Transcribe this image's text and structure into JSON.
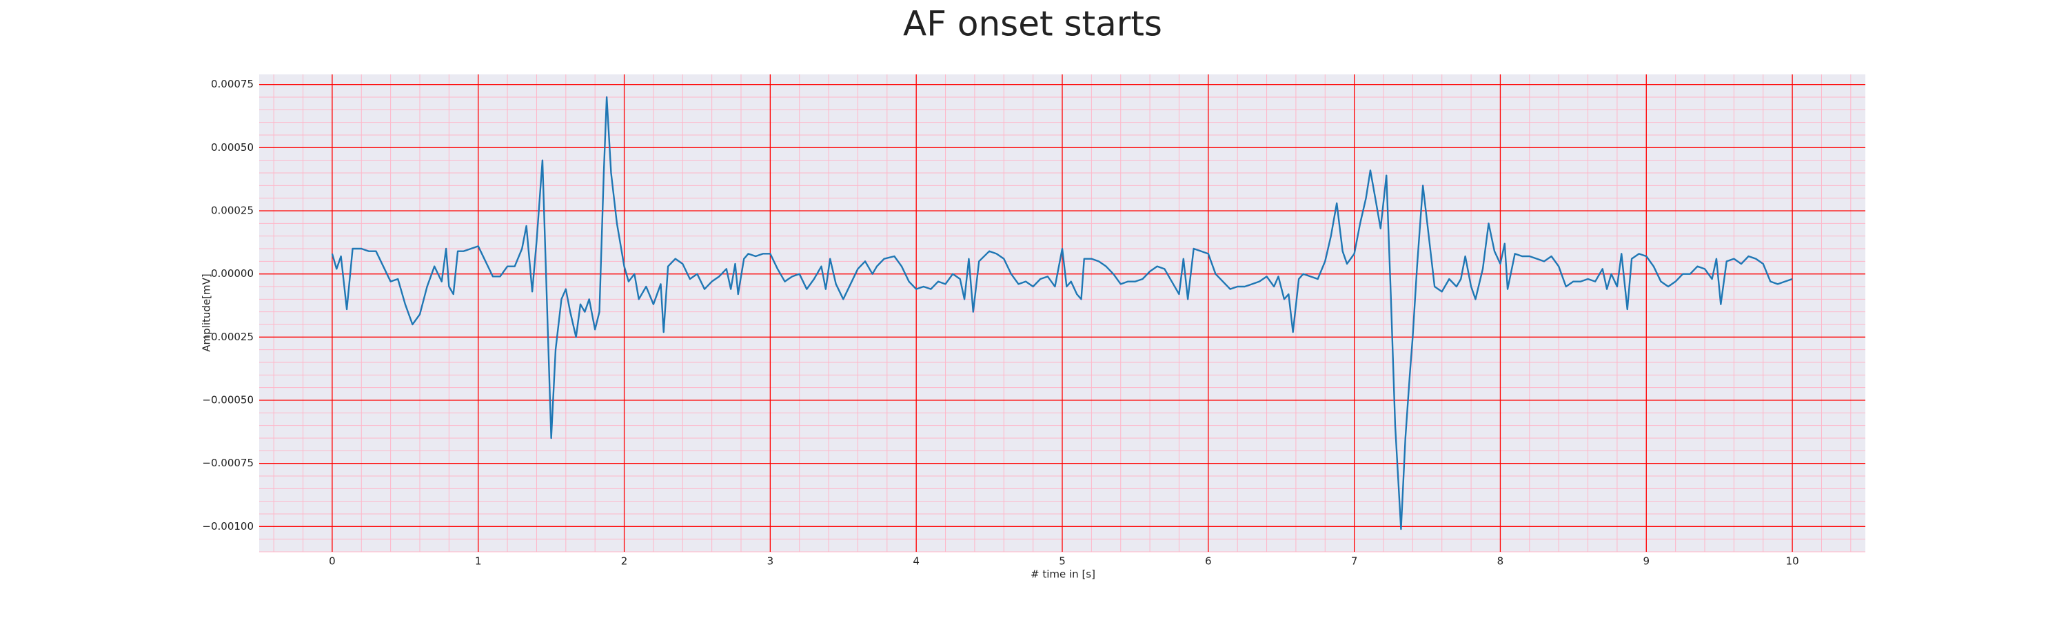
{
  "chart_data": {
    "type": "line",
    "title": "AF onset starts",
    "xlabel": "# time in [s]",
    "ylabel": "Amplitude[mV]",
    "x": [
      0,
      0.03,
      0.06,
      0.1,
      0.14,
      0.2,
      0.25,
      0.3,
      0.35,
      0.4,
      0.45,
      0.5,
      0.55,
      0.6,
      0.65,
      0.7,
      0.75,
      0.78,
      0.8,
      0.83,
      0.86,
      0.9,
      0.95,
      1.0,
      1.05,
      1.1,
      1.15,
      1.2,
      1.25,
      1.3,
      1.33,
      1.37,
      1.4,
      1.44,
      1.47,
      1.5,
      1.53,
      1.57,
      1.6,
      1.63,
      1.67,
      1.7,
      1.73,
      1.76,
      1.8,
      1.83,
      1.86,
      1.88,
      1.91,
      1.95,
      2.0,
      2.03,
      2.07,
      2.1,
      2.15,
      2.2,
      2.25,
      2.27,
      2.3,
      2.35,
      2.4,
      2.45,
      2.5,
      2.55,
      2.6,
      2.65,
      2.7,
      2.73,
      2.76,
      2.78,
      2.82,
      2.85,
      2.9,
      2.95,
      3.0,
      3.05,
      3.1,
      3.15,
      3.2,
      3.25,
      3.3,
      3.35,
      3.38,
      3.41,
      3.45,
      3.5,
      3.55,
      3.6,
      3.65,
      3.7,
      3.73,
      3.78,
      3.85,
      3.9,
      3.95,
      4.0,
      4.05,
      4.1,
      4.15,
      4.2,
      4.25,
      4.3,
      4.33,
      4.36,
      4.39,
      4.43,
      4.5,
      4.55,
      4.6,
      4.65,
      4.7,
      4.75,
      4.8,
      4.85,
      4.9,
      4.95,
      4.97,
      5.0,
      5.03,
      5.06,
      5.1,
      5.13,
      5.15,
      5.2,
      5.25,
      5.3,
      5.35,
      5.4,
      5.45,
      5.5,
      5.55,
      5.6,
      5.65,
      5.7,
      5.75,
      5.8,
      5.83,
      5.86,
      5.9,
      5.95,
      6.0,
      6.05,
      6.1,
      6.15,
      6.2,
      6.25,
      6.3,
      6.35,
      6.4,
      6.45,
      6.48,
      6.52,
      6.55,
      6.58,
      6.62,
      6.65,
      6.7,
      6.75,
      6.8,
      6.84,
      6.88,
      6.92,
      6.95,
      7.0,
      7.04,
      7.08,
      7.11,
      7.15,
      7.18,
      7.22,
      7.25,
      7.28,
      7.32,
      7.35,
      7.38,
      7.4,
      7.43,
      7.47,
      7.5,
      7.55,
      7.6,
      7.65,
      7.7,
      7.73,
      7.76,
      7.8,
      7.83,
      7.88,
      7.92,
      7.96,
      8.0,
      8.03,
      8.05,
      8.1,
      8.15,
      8.2,
      8.25,
      8.3,
      8.35,
      8.4,
      8.45,
      8.5,
      8.55,
      8.6,
      8.65,
      8.7,
      8.73,
      8.76,
      8.8,
      8.83,
      8.87,
      8.9,
      8.95,
      9.0,
      9.05,
      9.1,
      9.15,
      9.2,
      9.25,
      9.3,
      9.35,
      9.4,
      9.45,
      9.48,
      9.51,
      9.55,
      9.6,
      9.65,
      9.7,
      9.75,
      9.8,
      9.85,
      9.9,
      9.95,
      10.0
    ],
    "series": [
      {
        "color": "#1f77b4",
        "values": [
          8e-05,
          2e-05,
          7e-05,
          -0.00014,
          0.0001,
          0.0001,
          9e-05,
          9e-05,
          3e-05,
          -3e-05,
          -2e-05,
          -0.00012,
          -0.0002,
          -0.00016,
          -5e-05,
          3e-05,
          -3e-05,
          0.0001,
          -5e-05,
          -8e-05,
          9e-05,
          9e-05,
          0.0001,
          0.00011,
          5e-05,
          -1e-05,
          -1e-05,
          3e-05,
          3e-05,
          0.0001,
          0.00019,
          -7e-05,
          0.00013,
          0.00045,
          -0.0001,
          -0.00065,
          -0.0003,
          -0.0001,
          -6e-05,
          -0.00015,
          -0.00025,
          -0.00012,
          -0.00015,
          -0.0001,
          -0.00022,
          -0.00015,
          0.0004,
          0.0007,
          0.0004,
          0.0002,
          3e-05,
          -3e-05,
          0,
          -0.0001,
          -5e-05,
          -0.00012,
          -4e-05,
          -0.00023,
          3e-05,
          6e-05,
          4e-05,
          -2e-05,
          0,
          -6e-05,
          -3e-05,
          -1e-05,
          2e-05,
          -6e-05,
          4e-05,
          -8e-05,
          6e-05,
          8e-05,
          7e-05,
          8e-05,
          8e-05,
          2e-05,
          -3e-05,
          -1e-05,
          0,
          -6e-05,
          -2e-05,
          3e-05,
          -6e-05,
          6e-05,
          -4e-05,
          -0.0001,
          -4e-05,
          2e-05,
          5e-05,
          0,
          3e-05,
          6e-05,
          7e-05,
          3e-05,
          -3e-05,
          -6e-05,
          -5e-05,
          -6e-05,
          -3e-05,
          -4e-05,
          0,
          -2e-05,
          -0.0001,
          6e-05,
          -0.00015,
          5e-05,
          9e-05,
          8e-05,
          6e-05,
          0,
          -4e-05,
          -3e-05,
          -5e-05,
          -2e-05,
          -1e-05,
          -5e-05,
          1e-05,
          0.0001,
          -5e-05,
          -3e-05,
          -8e-05,
          -0.0001,
          6e-05,
          6e-05,
          5e-05,
          3e-05,
          0,
          -4e-05,
          -3e-05,
          -3e-05,
          -2e-05,
          1e-05,
          3e-05,
          2e-05,
          -3e-05,
          -8e-05,
          6e-05,
          -0.0001,
          0.0001,
          9e-05,
          8e-05,
          0,
          -3e-05,
          -6e-05,
          -5e-05,
          -5e-05,
          -4e-05,
          -3e-05,
          -1e-05,
          -5e-05,
          -1e-05,
          -0.0001,
          -8e-05,
          -0.00023,
          -2e-05,
          0,
          -1e-05,
          -2e-05,
          5e-05,
          0.00015,
          0.00028,
          9e-05,
          4e-05,
          8e-05,
          0.0002,
          0.0003,
          0.00041,
          0.00028,
          0.00018,
          0.00039,
          -8e-05,
          -0.0006,
          -0.00101,
          -0.00065,
          -0.0004,
          -0.00025,
          3e-05,
          0.00035,
          0.0002,
          -5e-05,
          -7e-05,
          -2e-05,
          -5e-05,
          -2e-05,
          7e-05,
          -5e-05,
          -0.0001,
          2e-05,
          0.0002,
          9e-05,
          4e-05,
          0.00012,
          -6e-05,
          8e-05,
          7e-05,
          7e-05,
          6e-05,
          5e-05,
          7e-05,
          3e-05,
          -5e-05,
          -3e-05,
          -3e-05,
          -2e-05,
          -3e-05,
          2e-05,
          -6e-05,
          0,
          -5e-05,
          8e-05,
          -0.00014,
          6e-05,
          8e-05,
          7e-05,
          3e-05,
          -3e-05,
          -5e-05,
          -3e-05,
          0,
          0,
          3e-05,
          2e-05,
          -2e-05,
          6e-05,
          -0.00012,
          5e-05,
          6e-05,
          4e-05,
          7e-05,
          6e-05,
          4e-05,
          -3e-05,
          -4e-05,
          -3e-05,
          -2e-05
        ]
      }
    ],
    "xlim": [
      -0.5,
      10.5
    ],
    "ylim": [
      -0.0011,
      0.00079
    ],
    "xticks": [
      0,
      1,
      2,
      3,
      4,
      5,
      6,
      7,
      8,
      9,
      10
    ],
    "yticks": [
      {
        "value": 0.00075,
        "label": "0.00075"
      },
      {
        "value": 0.0005,
        "label": "0.00050"
      },
      {
        "value": 0.00025,
        "label": "0.00025"
      },
      {
        "value": 0,
        "label": "0.00000"
      },
      {
        "value": -0.00025,
        "label": "−0.00025"
      },
      {
        "value": -0.0005,
        "label": "−0.00050"
      },
      {
        "value": -0.00075,
        "label": "−0.00075"
      },
      {
        "value": -0.001,
        "label": "−0.00100"
      }
    ],
    "grid": true,
    "grid_color": "#ff0000",
    "minor_grid": {
      "x": 0.2,
      "y": 5e-05
    },
    "minor_grid_color": "#ffb6c8",
    "background": "#eaeaf2"
  }
}
